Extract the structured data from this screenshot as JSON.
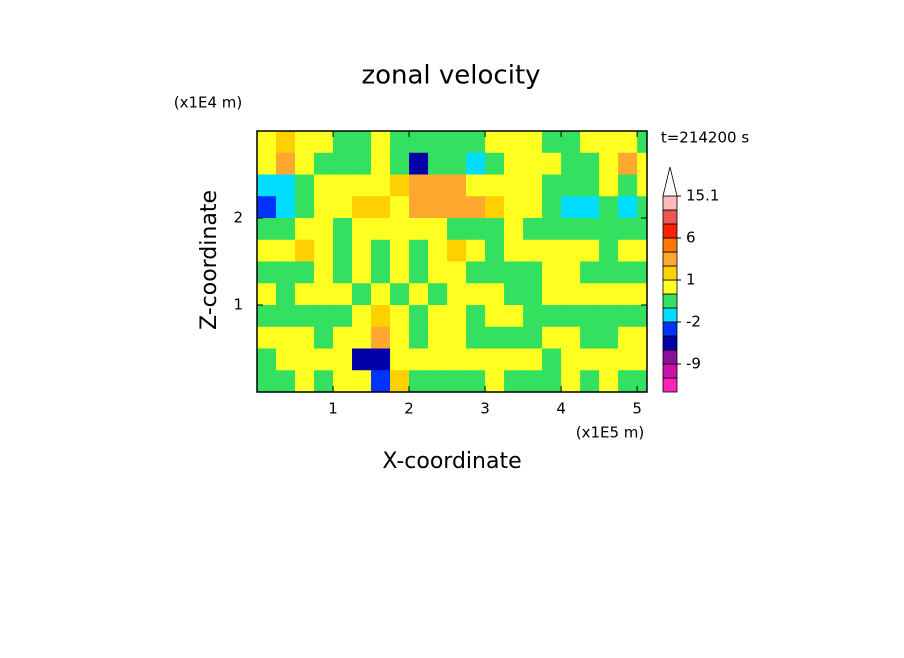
{
  "chart_data": {
    "type": "contour",
    "title": "zonal velocity",
    "xlabel": "X-coordinate",
    "ylabel": "Z-coordinate",
    "x_unit": "(x1E5 m)",
    "y_unit": "(x1E4 m)",
    "annotation": "t=214200 s",
    "xlim": [
      0,
      5.13
    ],
    "ylim": [
      0,
      3
    ],
    "xticks": [
      1,
      2,
      3,
      4,
      5
    ],
    "yticks": [
      1,
      2
    ],
    "x": [
      0.125,
      0.375,
      0.625,
      0.875,
      1.125,
      1.375,
      1.625,
      1.875,
      2.125,
      2.375,
      2.625,
      2.875,
      3.125,
      3.375,
      3.625,
      3.875,
      4.125,
      4.375,
      4.625,
      4.875,
      5.125
    ],
    "z": [
      2.875,
      2.625,
      2.375,
      2.125,
      1.875,
      1.625,
      1.375,
      1.125,
      0.875,
      0.625,
      0.375,
      0.125
    ],
    "values": [
      [
        0.5,
        1.5,
        0.5,
        0.5,
        -0.5,
        -0.5,
        0.5,
        -0.5,
        -0.5,
        -0.5,
        -0.5,
        -0.5,
        0.5,
        0.5,
        0.5,
        -0.5,
        -0.5,
        0.5,
        0.5,
        0.5,
        -0.5
      ],
      [
        0.5,
        3,
        0.5,
        -0.5,
        -0.5,
        -0.5,
        0.5,
        -0.5,
        -5,
        -0.5,
        -0.5,
        -1.5,
        -0.5,
        0.5,
        0.5,
        0.5,
        -0.5,
        -0.5,
        0.5,
        3,
        0.5
      ],
      [
        -1.5,
        -1.5,
        -0.5,
        0.5,
        0.5,
        0.5,
        0.5,
        1.5,
        3,
        3,
        3,
        0.5,
        0.5,
        0.5,
        0.5,
        -0.5,
        -0.5,
        -0.5,
        0.5,
        -0.5,
        0.5
      ],
      [
        -3,
        -1.5,
        -0.5,
        0.5,
        0.5,
        1.5,
        1.5,
        0.5,
        3,
        3,
        3,
        3,
        1.5,
        0.5,
        0.5,
        -0.5,
        -1.5,
        -1.5,
        -0.5,
        -1.5,
        -0.5
      ],
      [
        -0.5,
        -0.5,
        0.5,
        0.5,
        -0.5,
        0.5,
        0.5,
        0.5,
        0.5,
        0.5,
        -0.5,
        -0.5,
        -0.5,
        0.5,
        -0.5,
        -0.5,
        -0.5,
        -0.5,
        -0.5,
        -0.5,
        -0.5
      ],
      [
        0.5,
        0.5,
        1.5,
        0.5,
        -0.5,
        0.5,
        -0.5,
        0.5,
        -0.5,
        0.5,
        1.5,
        0.5,
        -0.5,
        0.5,
        0.5,
        0.5,
        0.5,
        0.5,
        -0.5,
        0.5,
        0.5
      ],
      [
        -0.5,
        -0.5,
        -0.5,
        0.5,
        -0.5,
        0.5,
        -0.5,
        0.5,
        -0.5,
        0.5,
        0.5,
        -0.5,
        -0.5,
        -0.5,
        -0.5,
        0.5,
        0.5,
        -0.5,
        -0.5,
        -0.5,
        -0.5
      ],
      [
        0.5,
        -0.5,
        0.5,
        0.5,
        0.5,
        -0.5,
        0.5,
        -0.5,
        0.5,
        -0.5,
        0.5,
        0.5,
        0.5,
        -0.5,
        -0.5,
        0.5,
        0.5,
        0.5,
        0.5,
        0.5,
        0.5
      ],
      [
        -0.5,
        -0.5,
        -0.5,
        -0.5,
        -0.5,
        0.5,
        1.5,
        0.5,
        -0.5,
        0.5,
        0.5,
        -0.5,
        0.5,
        0.5,
        -0.5,
        -0.5,
        -0.5,
        -0.5,
        -0.5,
        -0.5,
        -0.5
      ],
      [
        0.5,
        0.5,
        0.5,
        -0.5,
        0.5,
        0.5,
        3,
        0.5,
        -0.5,
        0.5,
        0.5,
        -0.5,
        -0.5,
        -0.5,
        -0.5,
        0.5,
        0.5,
        -0.5,
        -0.5,
        0.5,
        0.5
      ],
      [
        -0.5,
        0.5,
        0.5,
        0.5,
        0.5,
        -5,
        -5,
        0.5,
        0.5,
        0.5,
        0.5,
        0.5,
        0.5,
        0.5,
        0.5,
        -0.5,
        0.5,
        0.5,
        0.5,
        0.5,
        0.5
      ],
      [
        -0.5,
        -0.5,
        0.5,
        -0.5,
        0.5,
        0.5,
        -3,
        1.5,
        -0.5,
        -0.5,
        -0.5,
        -0.5,
        0.5,
        -0.5,
        -0.5,
        -0.5,
        0.5,
        -0.5,
        0.5,
        -0.5,
        -0.5
      ]
    ],
    "levels": [
      -15,
      -12,
      -9,
      -6,
      -4,
      -2,
      -1,
      0,
      1,
      2,
      4,
      6,
      9,
      12,
      15.1
    ],
    "colors": [
      "#ff22bb",
      "#cc11aa",
      "#881199",
      "#0000aa",
      "#0033ff",
      "#00ddff",
      "#33e060",
      "#ffff22",
      "#ffd000",
      "#ffa830",
      "#ff7700",
      "#ff2200",
      "#ee5555",
      "#ffbbbb"
    ],
    "extend_color": "#ffffff",
    "colorbar_ticks": [
      15.1,
      6,
      1,
      -2,
      -9
    ]
  }
}
